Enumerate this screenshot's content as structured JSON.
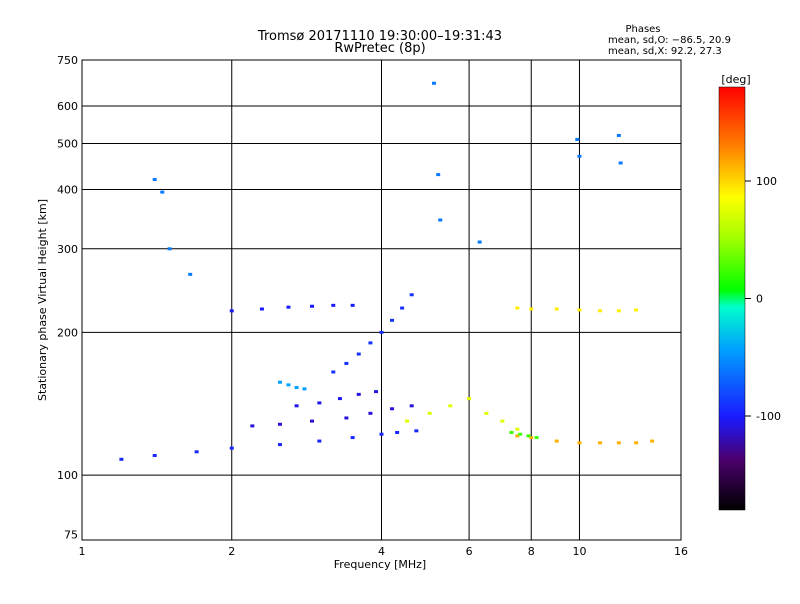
{
  "chart_data": {
    "type": "scatter",
    "title": "Tromsø 20171110 19:30:00–19:31:43",
    "subtitle": "RwPretec (8p)",
    "xlabel": "Frequency [MHz]",
    "ylabel": "Stationary phase Virtual Height [km]",
    "xscale": "log",
    "yscale": "log",
    "xlim": [
      1,
      16
    ],
    "ylim": [
      73,
      750
    ],
    "xticks": [
      1,
      2,
      4,
      6,
      8,
      10,
      16
    ],
    "yticks": [
      75,
      100,
      200,
      300,
      400,
      500,
      600,
      750
    ],
    "grid_x": [
      2,
      4,
      6,
      8,
      10
    ],
    "grid_y": [
      100,
      200,
      300,
      400,
      500,
      600
    ],
    "grid": true,
    "phase_box": {
      "title": "Phases",
      "line_o": "mean, sd,O: −86.5, 20.9",
      "line_x": "mean, sd,X:  92.2, 27.3"
    },
    "colorbar": {
      "label": "[deg]",
      "ticks": [
        100,
        0,
        -100
      ],
      "range": [
        -180,
        180
      ]
    },
    "series": [
      {
        "name": "trace-o-low",
        "x": [
          1.2,
          1.4,
          1.7,
          2.0,
          2.5,
          3.0,
          3.5,
          4.0,
          4.3,
          4.7
        ],
        "y": [
          108,
          110,
          112,
          114,
          116,
          118,
          120,
          122,
          123,
          124
        ],
        "phase": -95
      },
      {
        "name": "trace-o-mid",
        "x": [
          2.2,
          2.5,
          2.9,
          3.4,
          3.8,
          4.2,
          4.6
        ],
        "y": [
          127,
          128,
          130,
          132,
          135,
          138,
          140
        ],
        "phase": -110
      },
      {
        "name": "trace-o-2",
        "x": [
          2.7,
          3.0,
          3.3,
          3.6,
          3.9
        ],
        "y": [
          140,
          142,
          145,
          148,
          150
        ],
        "phase": -105
      },
      {
        "name": "trace-cyan",
        "x": [
          2.5,
          2.6,
          2.7,
          2.8
        ],
        "y": [
          157,
          155,
          153,
          152
        ],
        "phase": -45
      },
      {
        "name": "trace-f-high",
        "x": [
          2.0,
          2.3,
          2.6,
          2.9,
          3.2,
          3.5
        ],
        "y": [
          222,
          224,
          226,
          227,
          228,
          228
        ],
        "phase": -100
      },
      {
        "name": "trace-steep",
        "x": [
          3.2,
          3.4,
          3.6,
          3.8,
          4.0,
          4.2,
          4.4,
          4.6
        ],
        "y": [
          165,
          172,
          180,
          190,
          200,
          212,
          225,
          240
        ],
        "phase": -90
      },
      {
        "name": "trace-mixed",
        "x": [
          4.5,
          5.0,
          5.5,
          6.0,
          6.5,
          7.0,
          7.5
        ],
        "y": [
          130,
          135,
          140,
          145,
          135,
          130,
          125
        ],
        "phase": 80
      },
      {
        "name": "trace-x-low",
        "x": [
          7.5,
          8.0,
          9.0,
          10.0,
          11.0,
          12.0,
          13.0,
          14.0
        ],
        "y": [
          121,
          120,
          118,
          117,
          117,
          117,
          117,
          118
        ],
        "phase": 120
      },
      {
        "name": "trace-x-green",
        "x": [
          7.3,
          7.6,
          7.9,
          8.2
        ],
        "y": [
          123,
          122,
          121,
          120
        ],
        "phase": 20
      },
      {
        "name": "trace-x-high",
        "x": [
          7.5,
          8.0,
          9.0,
          10.0,
          11.0,
          12.0,
          13.0
        ],
        "y": [
          225,
          224,
          224,
          223,
          222,
          222,
          223
        ],
        "phase": 100
      },
      {
        "name": "scatter-high",
        "x": [
          1.4,
          1.45,
          1.5,
          1.65,
          5.1,
          5.2,
          5.25,
          9.9,
          10.0,
          12.0,
          12.1,
          6.3
        ],
        "y": [
          420,
          395,
          300,
          265,
          670,
          430,
          345,
          510,
          470,
          520,
          455,
          310
        ],
        "phase": -60
      }
    ]
  }
}
